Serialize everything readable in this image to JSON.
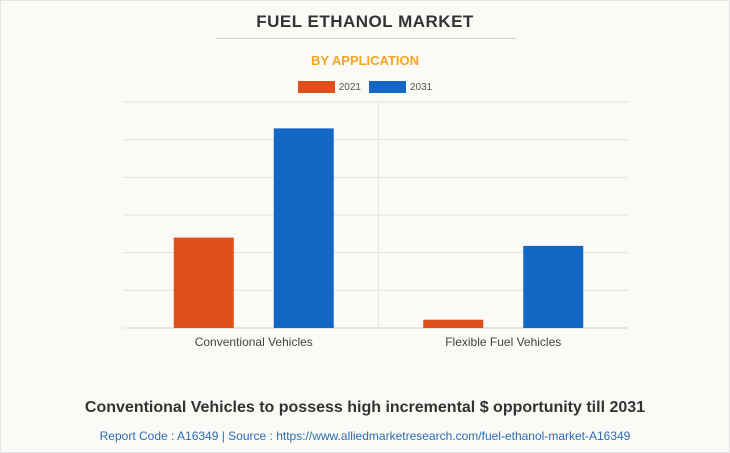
{
  "header": {
    "title": "FUEL ETHANOL MARKET",
    "subtitle": "BY APPLICATION"
  },
  "chart_data": {
    "type": "bar",
    "categories": [
      "Conventional Vehicles",
      "Flexible Fuel Vehicles"
    ],
    "series": [
      {
        "name": "2021",
        "color": "#e04e1b",
        "values": [
          24,
          2.2
        ]
      },
      {
        "name": "2031",
        "color": "#1467c4",
        "values": [
          53,
          21.8
        ]
      }
    ],
    "ylim": [
      0,
      60
    ],
    "grid": true,
    "legend_position": "top-center"
  },
  "footer": {
    "headline": "Conventional Vehicles to possess high incremental $ opportunity till 2031",
    "source": "Report Code : A16349  |  Source : https://www.alliedmarketresearch.com/fuel-ethanol-market-A16349"
  }
}
